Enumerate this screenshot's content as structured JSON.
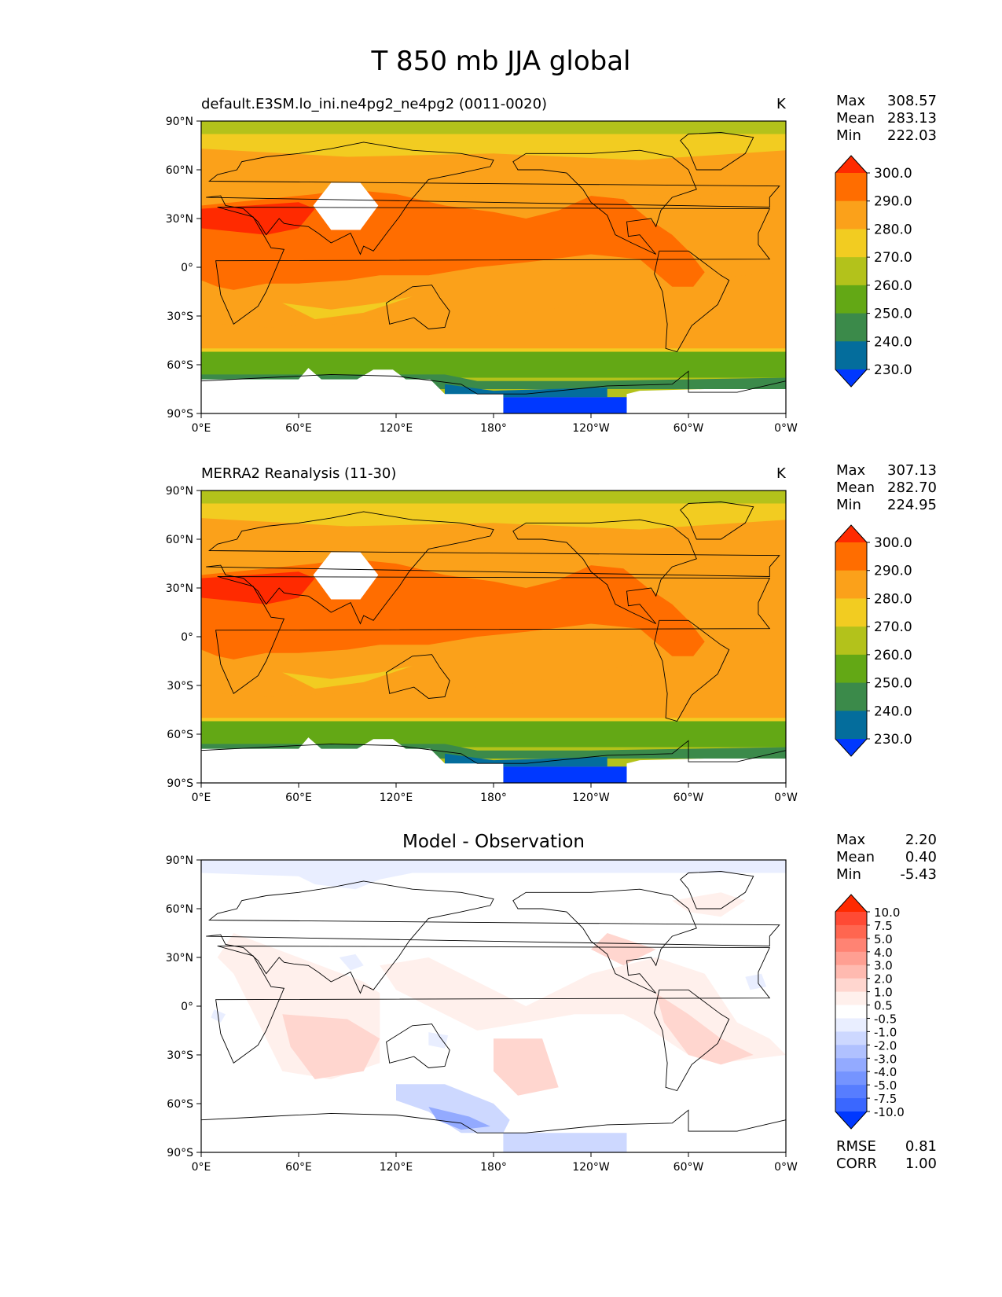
{
  "title": "T 850 mb JJA global",
  "axes": {
    "lat_ticks": [
      "90°N",
      "60°N",
      "30°N",
      "0°",
      "30°S",
      "60°S",
      "90°S"
    ],
    "lon_ticks": [
      "0°E",
      "60°E",
      "120°E",
      "180°",
      "120°W",
      "60°W",
      "0°W"
    ]
  },
  "panels": [
    {
      "title_left": "default.E3SM.lo_ini.ne4pg2_ne4pg2 (0011-0020)",
      "units": "K",
      "stats": {
        "max_label": "Max",
        "max": "308.57",
        "mean_label": "Mean",
        "mean": "283.13",
        "min_label": "Min",
        "min": "222.03"
      },
      "colorbar": {
        "labels": [
          "300.0",
          "290.0",
          "280.0",
          "270.0",
          "260.0",
          "250.0",
          "240.0",
          "230.0"
        ],
        "colors": [
          "#ff2a00",
          "#ff6d00",
          "#fba11a",
          "#f2cc21",
          "#b3c21b",
          "#63a815",
          "#3b8a4a",
          "#046d9c",
          "#0038ff"
        ]
      }
    },
    {
      "title_left": "MERRA2 Reanalysis (11-30)",
      "units": "K",
      "stats": {
        "max_label": "Max",
        "max": "307.13",
        "mean_label": "Mean",
        "mean": "282.70",
        "min_label": "Min",
        "min": "224.95"
      },
      "colorbar": {
        "labels": [
          "300.0",
          "290.0",
          "280.0",
          "270.0",
          "260.0",
          "250.0",
          "240.0",
          "230.0"
        ],
        "colors": [
          "#ff2a00",
          "#ff6d00",
          "#fba11a",
          "#f2cc21",
          "#b3c21b",
          "#63a815",
          "#3b8a4a",
          "#046d9c",
          "#0038ff"
        ]
      }
    },
    {
      "title_center": "Model - Observation",
      "stats": {
        "max_label": "Max",
        "max": "2.20",
        "mean_label": "Mean",
        "mean": "0.40",
        "min_label": "Min",
        "min": "-5.43"
      },
      "colorbar": {
        "labels": [
          "10.0",
          "7.5",
          "5.0",
          "4.0",
          "3.0",
          "2.0",
          "1.0",
          "0.5",
          "-0.5",
          "-1.0",
          "-2.0",
          "-3.0",
          "-4.0",
          "-5.0",
          "-7.5",
          "-10.0"
        ],
        "colors": [
          "#ff2a00",
          "#ff4a34",
          "#ff6650",
          "#ff8373",
          "#ff9f92",
          "#ffbab0",
          "#ffd6cf",
          "#fff0ec",
          "#ffffff",
          "#e9eeff",
          "#cdd8ff",
          "#b0c1ff",
          "#93aaff",
          "#7594ff",
          "#577dff",
          "#3a67ff",
          "#0038ff"
        ]
      },
      "bottom_stats": {
        "rmse_label": "RMSE",
        "rmse": "0.81",
        "corr_label": "CORR",
        "corr": "1.00"
      }
    }
  ]
}
